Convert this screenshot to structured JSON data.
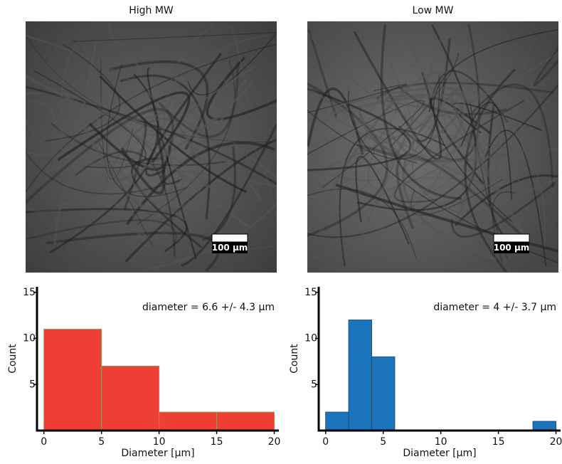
{
  "chart_data": [
    {
      "type": "histogram",
      "image_title": "High MW",
      "scale_bar_label": "100 µm",
      "annotation": "diameter = 6.6 +/- 4.3 µm",
      "xlabel": "Diameter [µm]",
      "ylabel": "Count",
      "bins": [
        0,
        5,
        10,
        15,
        20
      ],
      "values": [
        11,
        7,
        2,
        2
      ],
      "color": "#ef3e33",
      "edgecolor": "#a89060",
      "xlim": [
        -0.6,
        20.4
      ],
      "ylim": [
        0,
        15.6
      ],
      "xticks": [
        0,
        5,
        10,
        15,
        20
      ],
      "yticks": [
        5,
        10,
        15
      ]
    },
    {
      "type": "histogram",
      "image_title": "Low MW",
      "scale_bar_label": "100 µm",
      "annotation": "diameter = 4 +/- 3.7 µm",
      "xlabel": "Diameter [µm]",
      "ylabel": "Count",
      "bins": [
        0,
        2,
        4,
        6,
        8,
        10,
        12,
        14,
        16,
        18,
        20
      ],
      "values": [
        2,
        12,
        8,
        0,
        0,
        0,
        0,
        0,
        0,
        1
      ],
      "color": "#1a75bc",
      "edgecolor": "#1f4f80",
      "xlim": [
        -0.6,
        20.4
      ],
      "ylim": [
        0,
        15.6
      ],
      "xticks": [
        0,
        5,
        10,
        15,
        20
      ],
      "yticks": [
        5,
        10,
        15
      ]
    }
  ]
}
